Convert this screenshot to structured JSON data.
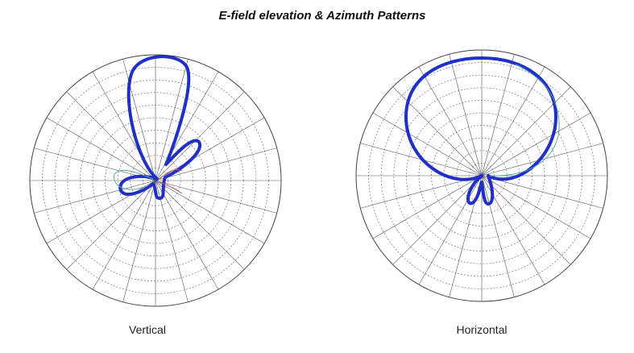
{
  "figure": {
    "title": "E-field elevation & Azimuth Patterns",
    "captions": [
      "Vertical",
      "Horizontal"
    ]
  }
}
